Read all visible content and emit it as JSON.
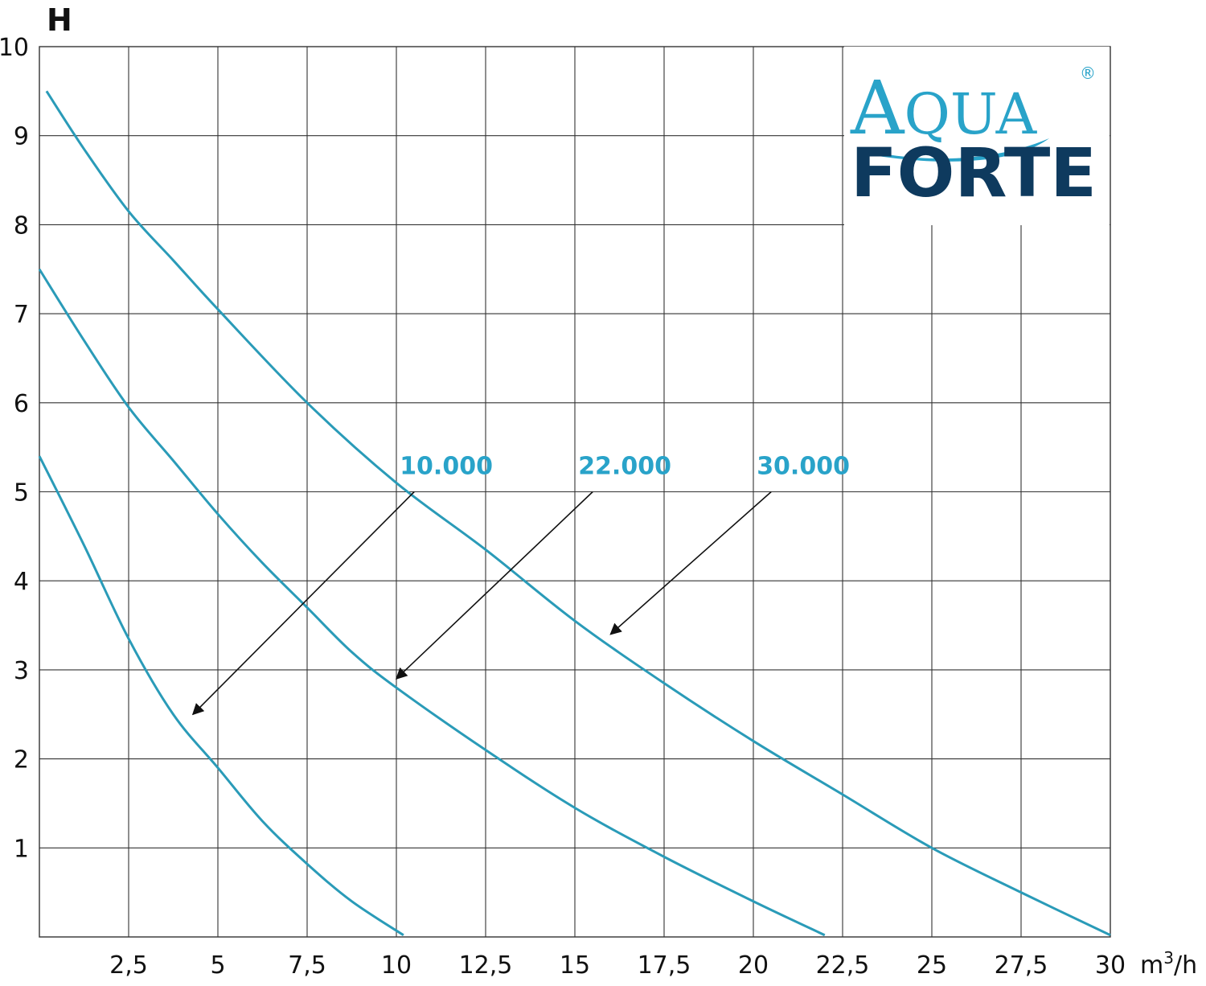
{
  "chart_data": {
    "type": "line",
    "ylabel": "H",
    "xlabel_unit": "m³/h",
    "xlim": [
      0,
      30
    ],
    "ylim": [
      0,
      10
    ],
    "x_ticks": [
      "2,5",
      "5",
      "7,5",
      "10",
      "12,5",
      "15",
      "17,5",
      "20",
      "22,5",
      "25",
      "27,5",
      "30"
    ],
    "y_ticks": [
      "1",
      "2",
      "3",
      "4",
      "5",
      "6",
      "7",
      "8",
      "9",
      "10"
    ],
    "grid": true,
    "legend": "none",
    "series": [
      {
        "name": "10.000",
        "color": "#2a9bb8",
        "points": [
          [
            0,
            5.4
          ],
          [
            1.25,
            4.4
          ],
          [
            2.5,
            3.35
          ],
          [
            3.75,
            2.5
          ],
          [
            5,
            1.9
          ],
          [
            6.25,
            1.3
          ],
          [
            7.5,
            0.82
          ],
          [
            8.75,
            0.4
          ],
          [
            10.2,
            0.02
          ]
        ]
      },
      {
        "name": "22.000",
        "color": "#2a9bb8",
        "points": [
          [
            0,
            7.5
          ],
          [
            1.25,
            6.7
          ],
          [
            2.5,
            5.95
          ],
          [
            3.75,
            5.35
          ],
          [
            5,
            4.75
          ],
          [
            6.25,
            4.2
          ],
          [
            7.5,
            3.7
          ],
          [
            8.75,
            3.2
          ],
          [
            10,
            2.8
          ],
          [
            12.5,
            2.1
          ],
          [
            15,
            1.45
          ],
          [
            17.5,
            0.9
          ],
          [
            20,
            0.4
          ],
          [
            22,
            0.02
          ]
        ]
      },
      {
        "name": "30.000",
        "color": "#2a9bb8",
        "points": [
          [
            0.2,
            9.5
          ],
          [
            1.25,
            8.85
          ],
          [
            2.5,
            8.15
          ],
          [
            3.75,
            7.6
          ],
          [
            5,
            7.05
          ],
          [
            7.5,
            6.0
          ],
          [
            10,
            5.1
          ],
          [
            12.5,
            4.35
          ],
          [
            15,
            3.55
          ],
          [
            17.5,
            2.85
          ],
          [
            20,
            2.2
          ],
          [
            22.5,
            1.6
          ],
          [
            25,
            1.0
          ],
          [
            27.5,
            0.5
          ],
          [
            30,
            0.02
          ]
        ]
      }
    ],
    "annotations": [
      {
        "text": "10.000",
        "arrow_tail": [
          10.5,
          5.0
        ],
        "arrow_head": [
          4.3,
          2.5
        ]
      },
      {
        "text": "22.000",
        "arrow_tail": [
          15.5,
          5.0
        ],
        "arrow_head": [
          10.0,
          2.9
        ]
      },
      {
        "text": "30.000",
        "arrow_tail": [
          20.5,
          5.0
        ],
        "arrow_head": [
          16.0,
          3.4
        ]
      }
    ],
    "logo": {
      "line1": "AQUA",
      "line1_small": "QUA",
      "line2": "FORTE",
      "mark": "®"
    }
  },
  "colors": {
    "curve": "#2a9bb8",
    "grid": "#333333",
    "logo_teal": "#29a3c9",
    "logo_navy": "#0e3a5e",
    "arrow": "#111111"
  }
}
